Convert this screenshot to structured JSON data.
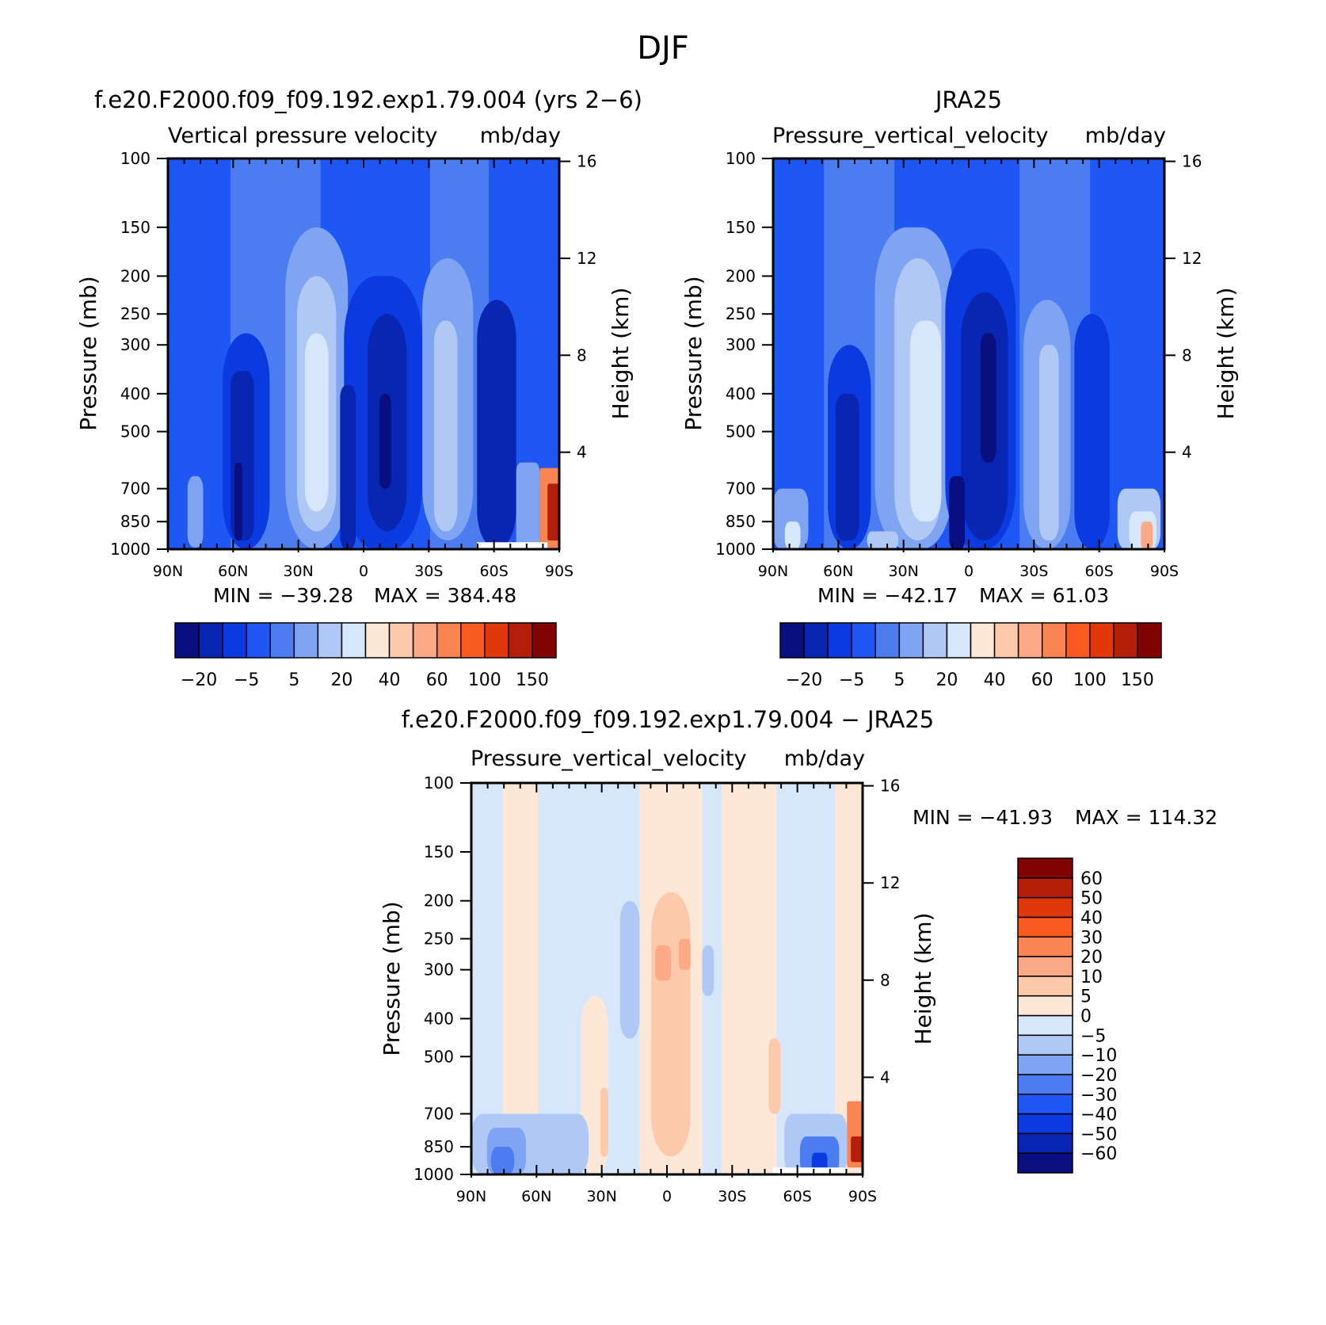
{
  "figure": {
    "title": "DJF"
  },
  "chart_data": [
    {
      "type": "heatmap",
      "id": "model",
      "title": "f.e20.F2000.f09_f09.192.exp1.79.004 (yrs 2−6)",
      "subtitle_left": "Vertical pressure velocity",
      "subtitle_right": "mb/day",
      "ylabel": "Pressure (mb)",
      "ylabel_right": "Height (km)",
      "x_ticks": [
        "90N",
        "60N",
        "30N",
        "0",
        "30S",
        "60S",
        "90S"
      ],
      "y_ticks": [
        100,
        150,
        200,
        250,
        300,
        400,
        500,
        700,
        850,
        1000
      ],
      "y_scale": "log",
      "ylim": [
        1000,
        100
      ],
      "height_ticks": [
        4,
        8,
        12,
        16
      ],
      "min_label": "MIN = −39.28",
      "max_label": "MAX = 384.48",
      "colorbar": {
        "orientation": "horizontal",
        "colors": [
          "#0a0f7f",
          "#0826b2",
          "#0a3ae0",
          "#1f57f5",
          "#4b7df0",
          "#7ea4f2",
          "#b0c8f5",
          "#d7e7fb",
          "#fde8d8",
          "#fccaaa",
          "#fbaa85",
          "#fa8552",
          "#f85a1f",
          "#e0380a",
          "#b41e08",
          "#820303"
        ],
        "labels": [
          "−20",
          "−5",
          "5",
          "20",
          "40",
          "60",
          "100",
          "150"
        ]
      },
      "levels": [
        "#1f57f5",
        "#4b7df0",
        "#0a3ae0",
        "#d7e7fb",
        "#b0c8f5",
        "#0826b2",
        "#7ea4f2",
        "#0a0f7f"
      ]
    },
    {
      "type": "heatmap",
      "id": "obs",
      "title": "JRA25",
      "subtitle_left": "Pressure_vertical_velocity",
      "subtitle_right": "mb/day",
      "ylabel": "Pressure (mb)",
      "ylabel_right": "Height (km)",
      "x_ticks": [
        "90N",
        "60N",
        "30N",
        "0",
        "30S",
        "60S",
        "90S"
      ],
      "y_ticks": [
        100,
        150,
        200,
        250,
        300,
        400,
        500,
        700,
        850,
        1000
      ],
      "y_scale": "log",
      "ylim": [
        1000,
        100
      ],
      "height_ticks": [
        4,
        8,
        12,
        16
      ],
      "min_label": "MIN = −42.17",
      "max_label": "MAX = 61.03",
      "colorbar": {
        "orientation": "horizontal",
        "colors": [
          "#0a0f7f",
          "#0826b2",
          "#0a3ae0",
          "#1f57f5",
          "#4b7df0",
          "#7ea4f2",
          "#b0c8f5",
          "#d7e7fb",
          "#fde8d8",
          "#fccaaa",
          "#fbaa85",
          "#fa8552",
          "#f85a1f",
          "#e0380a",
          "#b41e08",
          "#820303"
        ],
        "labels": [
          "−20",
          "−5",
          "5",
          "20",
          "40",
          "60",
          "100",
          "150"
        ]
      }
    },
    {
      "type": "heatmap",
      "id": "diff",
      "title": "f.e20.F2000.f09_f09.192.exp1.79.004 − JRA25",
      "subtitle_left": "Pressure_vertical_velocity",
      "subtitle_right": "mb/day",
      "ylabel": "Pressure (mb)",
      "ylabel_right": "Height (km)",
      "x_ticks": [
        "90N",
        "60N",
        "30N",
        "0",
        "30S",
        "60S",
        "90S"
      ],
      "y_ticks": [
        100,
        150,
        200,
        250,
        300,
        400,
        500,
        700,
        850,
        1000
      ],
      "y_scale": "log",
      "ylim": [
        1000,
        100
      ],
      "height_ticks": [
        4,
        8,
        12,
        16
      ],
      "min_label": "MIN = −41.93",
      "max_label": "MAX = 114.32",
      "colorbar": {
        "orientation": "vertical",
        "colors": [
          "#0a0f7f",
          "#0826b2",
          "#0a3ae0",
          "#1f57f5",
          "#4b7df0",
          "#7ea4f2",
          "#b0c8f5",
          "#d7e7fb",
          "#fde8d8",
          "#fccaaa",
          "#fbaa85",
          "#fa8552",
          "#f85a1f",
          "#e0380a",
          "#b41e08",
          "#820303"
        ],
        "labels": [
          "−60",
          "−50",
          "−40",
          "−30",
          "−20",
          "−10",
          "−5",
          "0",
          "5",
          "10",
          "20",
          "30",
          "40",
          "50",
          "60"
        ]
      }
    }
  ]
}
